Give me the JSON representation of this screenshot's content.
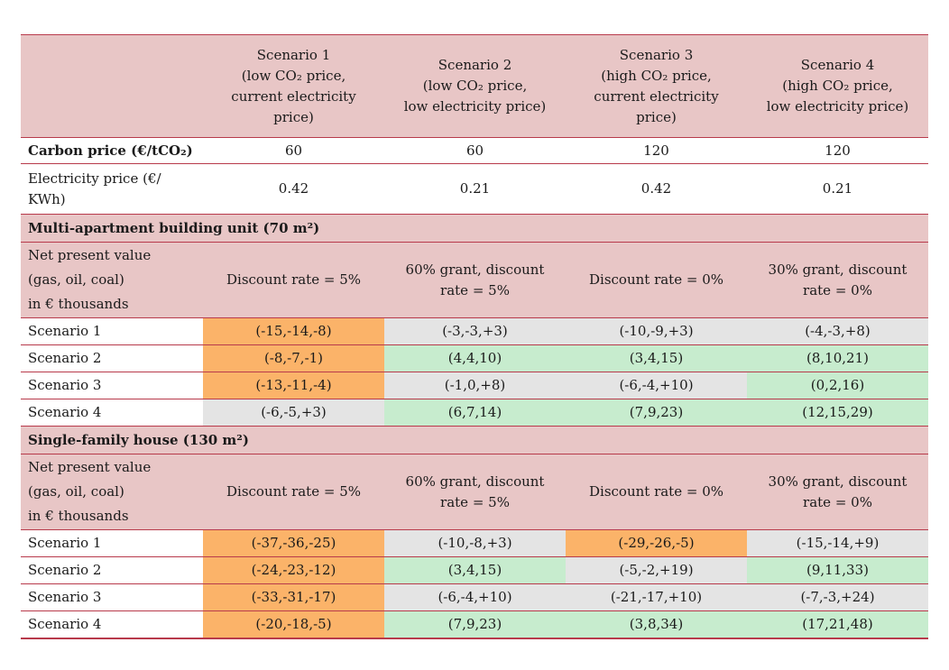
{
  "header": {
    "scenarios": [
      {
        "lines": [
          "Scenario 1",
          "(low CO₂ price,",
          "current electricity",
          "price)"
        ]
      },
      {
        "lines": [
          "Scenario 2",
          "(low CO₂ price,",
          "low electricity price)"
        ]
      },
      {
        "lines": [
          "Scenario 3",
          "(high CO₂ price,",
          "current electricity",
          "price)"
        ]
      },
      {
        "lines": [
          "Scenario 4",
          "(high CO₂ price,",
          "low electricity price)"
        ]
      }
    ]
  },
  "carbon_row": {
    "label": "Carbon price (€/tCO₂)",
    "values": [
      "60",
      "60",
      "120",
      "120"
    ]
  },
  "electricity_row": {
    "label_lines": [
      "Electricity price (€/",
      "KWh)"
    ],
    "values": [
      "0.42",
      "0.21",
      "0.42",
      "0.21"
    ]
  },
  "sections": [
    {
      "title": "Multi-apartment building unit (70 m²)",
      "npv_label_lines": [
        "Net present value",
        "(gas, oil, coal)",
        "in € thousands"
      ],
      "conditions": [
        {
          "lines": [
            "Discount rate = 5%"
          ]
        },
        {
          "lines": [
            "60% grant, discount",
            "rate = 5%"
          ]
        },
        {
          "lines": [
            "Discount rate = 0%"
          ]
        },
        {
          "lines": [
            "30% grant, discount",
            "rate = 0%"
          ]
        }
      ],
      "rows": [
        {
          "label": "Scenario 1",
          "cells": [
            {
              "v": "(-15,-14,-8)",
              "c": "orange"
            },
            {
              "v": "(-3,-3,+3)",
              "c": "grey"
            },
            {
              "v": "(-10,-9,+3)",
              "c": "grey"
            },
            {
              "v": "(-4,-3,+8)",
              "c": "grey"
            }
          ]
        },
        {
          "label": "Scenario 2",
          "cells": [
            {
              "v": "(-8,-7,-1)",
              "c": "orange"
            },
            {
              "v": "(4,4,10)",
              "c": "green"
            },
            {
              "v": "(3,4,15)",
              "c": "green"
            },
            {
              "v": "(8,10,21)",
              "c": "green"
            }
          ]
        },
        {
          "label": "Scenario 3",
          "cells": [
            {
              "v": "(-13,-11,-4)",
              "c": "orange"
            },
            {
              "v": "(-1,0,+8)",
              "c": "grey"
            },
            {
              "v": "(-6,-4,+10)",
              "c": "grey"
            },
            {
              "v": "(0,2,16)",
              "c": "green"
            }
          ]
        },
        {
          "label": "Scenario 4",
          "cells": [
            {
              "v": "(-6,-5,+3)",
              "c": "grey"
            },
            {
              "v": "(6,7,14)",
              "c": "green"
            },
            {
              "v": "(7,9,23)",
              "c": "green"
            },
            {
              "v": "(12,15,29)",
              "c": "green"
            }
          ]
        }
      ]
    },
    {
      "title": "Single-family house (130 m²)",
      "npv_label_lines": [
        "Net present value",
        "(gas, oil, coal)",
        "in € thousands"
      ],
      "conditions": [
        {
          "lines": [
            "Discount rate = 5%"
          ]
        },
        {
          "lines": [
            "60% grant, discount",
            "rate = 5%"
          ]
        },
        {
          "lines": [
            "Discount rate = 0%"
          ]
        },
        {
          "lines": [
            "30% grant, discount",
            "rate = 0%"
          ]
        }
      ],
      "rows": [
        {
          "label": "Scenario 1",
          "cells": [
            {
              "v": "(-37,-36,-25)",
              "c": "orange"
            },
            {
              "v": "(-10,-8,+3)",
              "c": "grey"
            },
            {
              "v": "(-29,-26,-5)",
              "c": "orange"
            },
            {
              "v": "(-15,-14,+9)",
              "c": "grey"
            }
          ]
        },
        {
          "label": "Scenario 2",
          "cells": [
            {
              "v": "(-24,-23,-12)",
              "c": "orange"
            },
            {
              "v": "(3,4,15)",
              "c": "green"
            },
            {
              "v": "(-5,-2,+19)",
              "c": "grey"
            },
            {
              "v": "(9,11,33)",
              "c": "green"
            }
          ]
        },
        {
          "label": "Scenario 3",
          "cells": [
            {
              "v": "(-33,-31,-17)",
              "c": "orange"
            },
            {
              "v": "(-6,-4,+10)",
              "c": "grey"
            },
            {
              "v": "(-21,-17,+10)",
              "c": "grey"
            },
            {
              "v": "(-7,-3,+24)",
              "c": "grey"
            }
          ]
        },
        {
          "label": "Scenario 4",
          "cells": [
            {
              "v": "(-20,-18,-5)",
              "c": "orange"
            },
            {
              "v": "(7,9,23)",
              "c": "green"
            },
            {
              "v": "(3,8,34)",
              "c": "green"
            },
            {
              "v": "(17,21,48)",
              "c": "green"
            }
          ]
        }
      ]
    }
  ]
}
